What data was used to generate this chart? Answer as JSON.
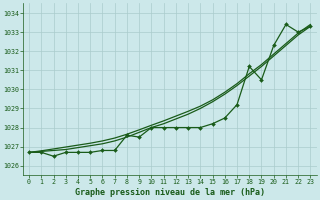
{
  "title": "Graphe pression niveau de la mer (hPa)",
  "background_color": "#cce8ea",
  "grid_color": "#aacccc",
  "line_color": "#1a5c1a",
  "xlim": [
    -0.5,
    23.5
  ],
  "ylim": [
    1025.5,
    1034.5
  ],
  "yticks": [
    1026,
    1027,
    1028,
    1029,
    1030,
    1031,
    1032,
    1033,
    1034
  ],
  "xticks": [
    0,
    1,
    2,
    3,
    4,
    5,
    6,
    7,
    8,
    9,
    10,
    11,
    12,
    13,
    14,
    15,
    16,
    17,
    18,
    19,
    20,
    21,
    22,
    23
  ],
  "x": [
    0,
    1,
    2,
    3,
    4,
    5,
    6,
    7,
    8,
    9,
    10,
    11,
    12,
    13,
    14,
    15,
    16,
    17,
    18,
    19,
    20,
    21,
    22,
    23
  ],
  "series_markers": [
    1026.7,
    1026.7,
    1026.5,
    1026.7,
    1026.7,
    1026.7,
    1026.8,
    1026.8,
    1027.6,
    1027.5,
    1028.0,
    1028.0,
    1028.0,
    1028.0,
    1028.0,
    1028.2,
    1028.5,
    1029.2,
    1031.2,
    1030.5,
    1032.3,
    1033.4,
    1033.0,
    1033.3
  ],
  "series_smooth1": [
    1026.7,
    1026.75,
    1026.8,
    1026.85,
    1026.95,
    1027.05,
    1027.15,
    1027.3,
    1027.5,
    1027.75,
    1028.0,
    1028.2,
    1028.45,
    1028.7,
    1029.0,
    1029.35,
    1029.75,
    1030.2,
    1030.7,
    1031.2,
    1031.75,
    1032.3,
    1032.85,
    1033.3
  ],
  "series_smooth2": [
    1026.7,
    1026.78,
    1026.88,
    1026.98,
    1027.08,
    1027.18,
    1027.3,
    1027.45,
    1027.65,
    1027.88,
    1028.12,
    1028.35,
    1028.6,
    1028.85,
    1029.12,
    1029.45,
    1029.85,
    1030.3,
    1030.82,
    1031.3,
    1031.85,
    1032.4,
    1032.95,
    1033.4
  ]
}
